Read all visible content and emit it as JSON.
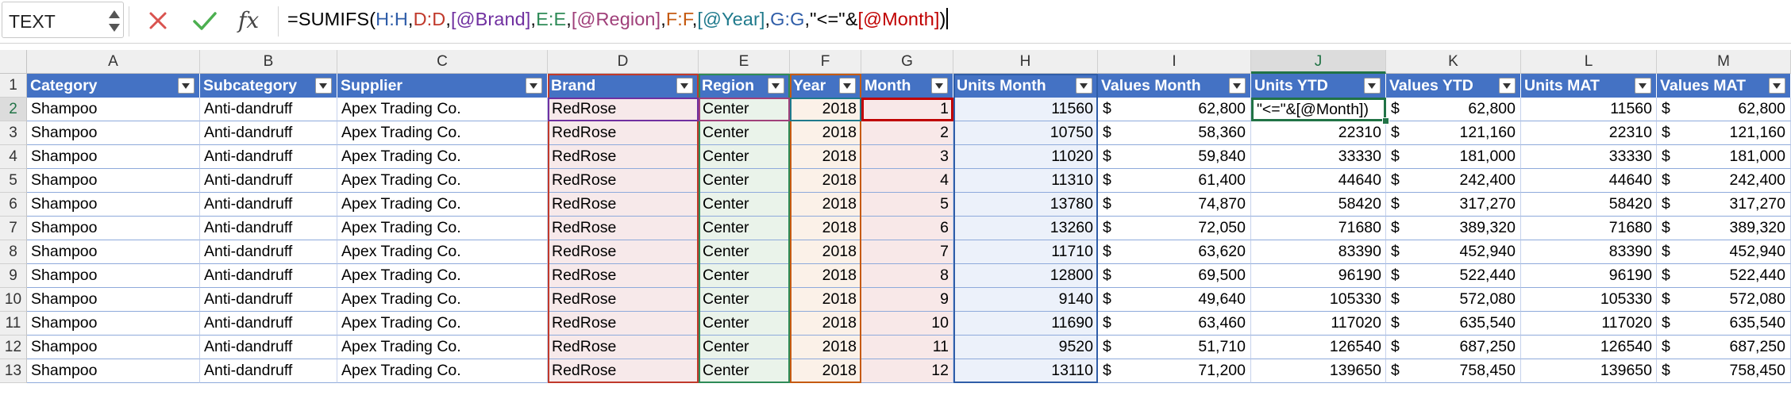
{
  "name_box": {
    "value": "TEXT"
  },
  "formula_bar": {
    "fx_label": "fx",
    "tokens": [
      {
        "text": "=SUMIFS(",
        "color": "#000000"
      },
      {
        "text": "H:H",
        "color": "#2f5da8"
      },
      {
        "text": ",",
        "color": "#000000"
      },
      {
        "text": "D:D",
        "color": "#c0392b"
      },
      {
        "text": ",",
        "color": "#000000"
      },
      {
        "text": "[@Brand]",
        "color": "#7030a0"
      },
      {
        "text": ",",
        "color": "#000000"
      },
      {
        "text": "E:E",
        "color": "#2e8b57"
      },
      {
        "text": ",",
        "color": "#000000"
      },
      {
        "text": "[@Region]",
        "color": "#a0407a"
      },
      {
        "text": ",",
        "color": "#000000"
      },
      {
        "text": "F:F",
        "color": "#c55a11"
      },
      {
        "text": ",",
        "color": "#000000"
      },
      {
        "text": "[@Year]",
        "color": "#1f7a8c"
      },
      {
        "text": ",",
        "color": "#000000"
      },
      {
        "text": "G:G",
        "color": "#2f5da8"
      },
      {
        "text": ",\"<=\"&",
        "color": "#000000"
      },
      {
        "text": "[@Month]",
        "color": "#c00000"
      },
      {
        "text": ")",
        "color": "#000000"
      }
    ]
  },
  "columns": [
    "A",
    "B",
    "C",
    "D",
    "E",
    "F",
    "G",
    "H",
    "I",
    "J",
    "K",
    "L",
    "M"
  ],
  "selected_column": "J",
  "selected_row": "2",
  "table_headers": [
    "Category",
    "Subcategory",
    "Supplier",
    "Brand",
    "Region",
    "Year",
    "Month",
    "Units Month",
    "Values Month",
    "Units YTD",
    "Values YTD",
    "Units MAT",
    "Values MAT"
  ],
  "currency_symbol": "$",
  "active_cell": {
    "address": "J2",
    "text": "\"<=\"&[@Month])"
  },
  "rows": [
    {
      "row": "2",
      "category": "Shampoo",
      "subcategory": "Anti-dandruff",
      "supplier": "Apex Trading Co.",
      "brand": "RedRose",
      "region": "Center",
      "year": "2018",
      "month": "1",
      "units_month": "11560",
      "values_month": "62,800",
      "units_ytd": "",
      "values_ytd": "62,800",
      "units_mat": "11560",
      "values_mat": "62,800"
    },
    {
      "row": "3",
      "category": "Shampoo",
      "subcategory": "Anti-dandruff",
      "supplier": "Apex Trading Co.",
      "brand": "RedRose",
      "region": "Center",
      "year": "2018",
      "month": "2",
      "units_month": "10750",
      "values_month": "58,360",
      "units_ytd": "22310",
      "values_ytd": "121,160",
      "units_mat": "22310",
      "values_mat": "121,160"
    },
    {
      "row": "4",
      "category": "Shampoo",
      "subcategory": "Anti-dandruff",
      "supplier": "Apex Trading Co.",
      "brand": "RedRose",
      "region": "Center",
      "year": "2018",
      "month": "3",
      "units_month": "11020",
      "values_month": "59,840",
      "units_ytd": "33330",
      "values_ytd": "181,000",
      "units_mat": "33330",
      "values_mat": "181,000"
    },
    {
      "row": "5",
      "category": "Shampoo",
      "subcategory": "Anti-dandruff",
      "supplier": "Apex Trading Co.",
      "brand": "RedRose",
      "region": "Center",
      "year": "2018",
      "month": "4",
      "units_month": "11310",
      "values_month": "61,400",
      "units_ytd": "44640",
      "values_ytd": "242,400",
      "units_mat": "44640",
      "values_mat": "242,400"
    },
    {
      "row": "6",
      "category": "Shampoo",
      "subcategory": "Anti-dandruff",
      "supplier": "Apex Trading Co.",
      "brand": "RedRose",
      "region": "Center",
      "year": "2018",
      "month": "5",
      "units_month": "13780",
      "values_month": "74,870",
      "units_ytd": "58420",
      "values_ytd": "317,270",
      "units_mat": "58420",
      "values_mat": "317,270"
    },
    {
      "row": "7",
      "category": "Shampoo",
      "subcategory": "Anti-dandruff",
      "supplier": "Apex Trading Co.",
      "brand": "RedRose",
      "region": "Center",
      "year": "2018",
      "month": "6",
      "units_month": "13260",
      "values_month": "72,050",
      "units_ytd": "71680",
      "values_ytd": "389,320",
      "units_mat": "71680",
      "values_mat": "389,320"
    },
    {
      "row": "8",
      "category": "Shampoo",
      "subcategory": "Anti-dandruff",
      "supplier": "Apex Trading Co.",
      "brand": "RedRose",
      "region": "Center",
      "year": "2018",
      "month": "7",
      "units_month": "11710",
      "values_month": "63,620",
      "units_ytd": "83390",
      "values_ytd": "452,940",
      "units_mat": "83390",
      "values_mat": "452,940"
    },
    {
      "row": "9",
      "category": "Shampoo",
      "subcategory": "Anti-dandruff",
      "supplier": "Apex Trading Co.",
      "brand": "RedRose",
      "region": "Center",
      "year": "2018",
      "month": "8",
      "units_month": "12800",
      "values_month": "69,500",
      "units_ytd": "96190",
      "values_ytd": "522,440",
      "units_mat": "96190",
      "values_mat": "522,440"
    },
    {
      "row": "10",
      "category": "Shampoo",
      "subcategory": "Anti-dandruff",
      "supplier": "Apex Trading Co.",
      "brand": "RedRose",
      "region": "Center",
      "year": "2018",
      "month": "9",
      "units_month": "9140",
      "values_month": "49,640",
      "units_ytd": "105330",
      "values_ytd": "572,080",
      "units_mat": "105330",
      "values_mat": "572,080"
    },
    {
      "row": "11",
      "category": "Shampoo",
      "subcategory": "Anti-dandruff",
      "supplier": "Apex Trading Co.",
      "brand": "RedRose",
      "region": "Center",
      "year": "2018",
      "month": "10",
      "units_month": "11690",
      "values_month": "63,460",
      "units_ytd": "117020",
      "values_ytd": "635,540",
      "units_mat": "117020",
      "values_mat": "635,540"
    },
    {
      "row": "12",
      "category": "Shampoo",
      "subcategory": "Anti-dandruff",
      "supplier": "Apex Trading Co.",
      "brand": "RedRose",
      "region": "Center",
      "year": "2018",
      "month": "11",
      "units_month": "9520",
      "values_month": "51,710",
      "units_ytd": "126540",
      "values_ytd": "687,250",
      "units_mat": "126540",
      "values_mat": "687,250"
    },
    {
      "row": "13",
      "category": "Shampoo",
      "subcategory": "Anti-dandruff",
      "supplier": "Apex Trading Co.",
      "brand": "RedRose",
      "region": "Center",
      "year": "2018",
      "month": "12",
      "units_month": "13110",
      "values_month": "71,200",
      "units_ytd": "139650",
      "values_ytd": "758,450",
      "units_mat": "139650",
      "values_mat": "758,450"
    }
  ],
  "colors": {
    "table_header_bg": "#4472c4",
    "table_border": "#8eaadb",
    "active_cell_border": "#217346",
    "ref_brand": "#c0392b",
    "ref_region": "#2e8b57",
    "ref_year": "#c55a11",
    "ref_month": "#c00000",
    "ref_units_month": "#2f5da8",
    "cancel_icon": "#d9534f",
    "confirm_icon": "#4caf50"
  }
}
